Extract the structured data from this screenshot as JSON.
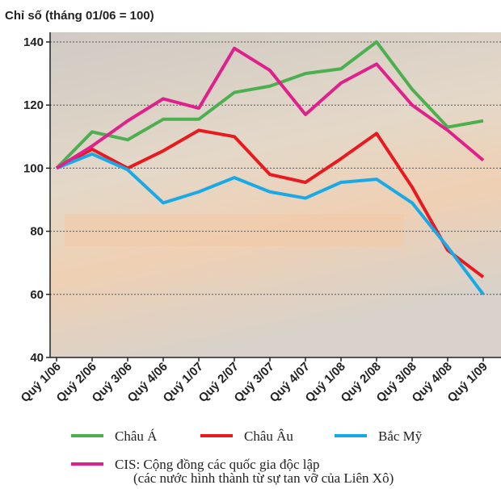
{
  "chart_data": {
    "type": "line",
    "y_axis_title": "Chỉ số (tháng 01/06 = 100)",
    "categories": [
      "Quý 1/06",
      "Quý 2/06",
      "Quý 3/06",
      "Quý 4/06",
      "Quý 1/07",
      "Quý 2/07",
      "Quý 3/07",
      "Quý 4/07",
      "Quý 1/08",
      "Quý 2/08",
      "Quý 3/08",
      "Quý 4/08",
      "Quý 1/09"
    ],
    "series": [
      {
        "name": "Châu Á",
        "color": "#4caf50",
        "values": [
          100,
          111.5,
          109,
          115.5,
          115.5,
          124,
          126,
          130,
          131.5,
          140,
          125,
          113,
          115
        ]
      },
      {
        "name": "Châu Âu",
        "color": "#e8191f",
        "values": [
          100,
          106,
          100,
          105.5,
          112,
          110,
          98,
          95.5,
          103,
          111,
          94,
          74,
          65.5
        ]
      },
      {
        "name": "Bắc Mỹ",
        "color": "#19a9e6",
        "values": [
          100,
          104.5,
          99.5,
          89,
          92.5,
          97,
          92.5,
          90.5,
          95.5,
          96.5,
          89,
          75,
          60
        ]
      },
      {
        "name": "CIS: Cộng đồng các quốc gia độc lập",
        "color": "#e0208c",
        "values": [
          100,
          107,
          115,
          122,
          119,
          138,
          131,
          117,
          127,
          133,
          120,
          112,
          102.5
        ]
      }
    ],
    "legend_note": "(các nước hình thành từ sự tan vỡ của Liên Xô)",
    "ylim": [
      40,
      140
    ],
    "yticks": [
      40,
      60,
      80,
      100,
      120,
      140
    ],
    "grid": true
  }
}
